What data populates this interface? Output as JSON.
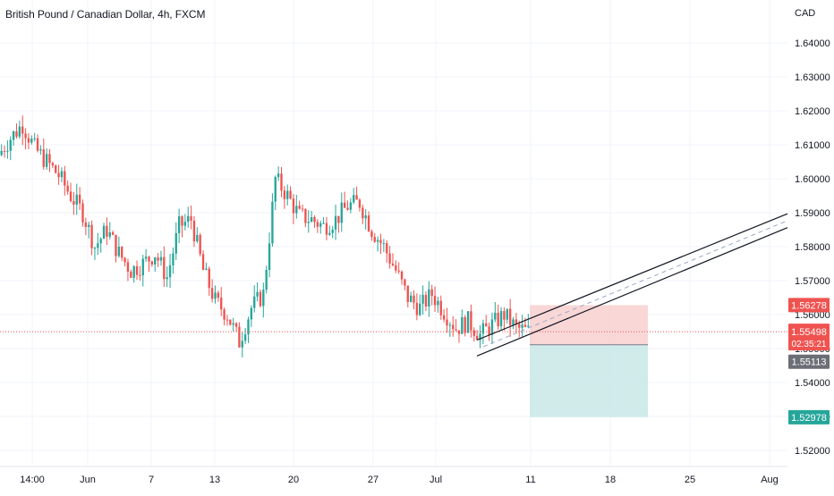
{
  "header": {
    "title": "British Pound / Canadian Dollar, 4h, FXCM"
  },
  "price_axis": {
    "currency": "CAD",
    "ticks": [
      "1.64000",
      "1.63000",
      "1.62000",
      "1.61000",
      "1.60000",
      "1.59000",
      "1.58000",
      "1.57000",
      "1.56000",
      "1.55000",
      "1.54000",
      "1.53000",
      "1.52000"
    ]
  },
  "time_axis": {
    "ticks": [
      "14:00",
      "Jun",
      "7",
      "13",
      "20",
      "27",
      "Jul",
      "11",
      "18",
      "25",
      "Aug"
    ]
  },
  "price_labels": {
    "stop": "1.56278",
    "current": "1.55498",
    "countdown": "02:35:21",
    "entry": "1.55113",
    "target": "1.52978"
  },
  "colors": {
    "up": "#26a69a",
    "down": "#ef5350",
    "grid": "#f0f3fa",
    "stop_zone": "#f7c9c9",
    "target_zone": "#c8e8e6",
    "entry_label": "#6b6e76",
    "target_label": "#26a69a",
    "stop_label": "#ef5350",
    "current_label": "#ef5350"
  },
  "chart_data": {
    "type": "candlestick",
    "timeframe": "4h",
    "symbol": "GBPCAD",
    "ylim": [
      1.5165,
      1.6535
    ],
    "y_ticks": [
      1.64,
      1.63,
      1.62,
      1.61,
      1.6,
      1.59,
      1.58,
      1.57,
      1.56,
      1.55,
      1.54,
      1.53,
      1.52
    ],
    "x_ticks": [
      "14:00",
      "Jun",
      "7",
      "13",
      "20",
      "27",
      "Jul",
      "11",
      "18",
      "25",
      "Aug"
    ],
    "price_path_closes": [
      1.607,
      1.612,
      1.616,
      1.609,
      1.605,
      1.601,
      1.595,
      1.59,
      1.58,
      1.585,
      1.578,
      1.573,
      1.575,
      1.578,
      1.571,
      1.586,
      1.588,
      1.573,
      1.564,
      1.56,
      1.552,
      1.562,
      1.566,
      1.6,
      1.595,
      1.589,
      1.588,
      1.586,
      1.588,
      1.592,
      1.593,
      1.585,
      1.58,
      1.573,
      1.565,
      1.562,
      1.566,
      1.561,
      1.556,
      1.558,
      1.554,
      1.557,
      1.56,
      1.556,
      1.555
    ],
    "current_price": 1.55498,
    "position": {
      "type": "long",
      "entry": 1.55113,
      "stop": 1.56278,
      "target": 1.52978
    },
    "channel": {
      "upper_start": 1.5525,
      "upper_end": 1.5897,
      "lower_start": 1.5507,
      "lower_end": 1.5856
    }
  }
}
